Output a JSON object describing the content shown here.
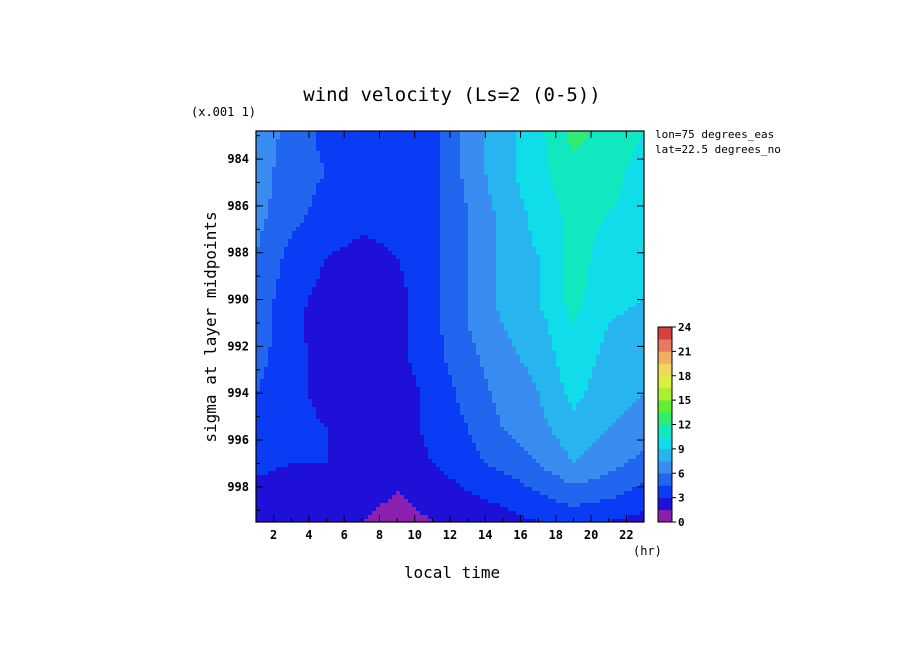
{
  "chart_data": {
    "type": "heatmap",
    "title": "wind velocity (Ls=2 (0-5))",
    "xlabel": "local time",
    "ylabel": "sigma at layer midpoints",
    "x_units": "(hr)",
    "y_scale_note": "(x.001 1)",
    "annotations": [
      "lon=75 degrees_eas",
      "lat=22.5 degrees_no"
    ],
    "xlim": [
      1,
      23
    ],
    "ylim": [
      999.5,
      982.8
    ],
    "x_ticks": [
      2,
      4,
      6,
      8,
      10,
      12,
      14,
      16,
      18,
      20,
      22
    ],
    "y_ticks": [
      984,
      986,
      988,
      990,
      992,
      994,
      996,
      998
    ],
    "x": [
      1,
      3,
      5,
      7,
      9,
      11,
      13,
      15,
      17,
      19,
      21,
      23
    ],
    "y": [
      982.8,
      984.5,
      986.3,
      988.2,
      990,
      991,
      992.5,
      994,
      995.5,
      997,
      998.2,
      999.5
    ],
    "z": [
      [
        7.0,
        5.5,
        4.0,
        3.5,
        4.0,
        4.0,
        6.5,
        8.5,
        10.0,
        12.5,
        11.5,
        10.5
      ],
      [
        7.0,
        5.0,
        4.5,
        4.0,
        3.5,
        4.0,
        6.5,
        8.5,
        10.0,
        11.5,
        11.0,
        10.0
      ],
      [
        6.5,
        5.0,
        4.0,
        3.5,
        3.5,
        4.0,
        6.0,
        8.0,
        9.5,
        11.0,
        10.5,
        10.0
      ],
      [
        6.0,
        4.0,
        3.0,
        2.5,
        3.0,
        4.0,
        6.0,
        8.0,
        9.0,
        11.0,
        10.0,
        9.5
      ],
      [
        5.5,
        3.5,
        2.5,
        2.0,
        2.5,
        4.0,
        6.0,
        8.0,
        9.0,
        11.0,
        9.5,
        9.0
      ],
      [
        5.5,
        3.5,
        2.0,
        2.0,
        2.5,
        4.0,
        6.0,
        7.5,
        8.5,
        10.5,
        9.0,
        8.5
      ],
      [
        5.0,
        3.5,
        2.5,
        2.0,
        2.5,
        4.0,
        5.5,
        7.0,
        8.0,
        10.0,
        8.5,
        8.0
      ],
      [
        4.5,
        3.5,
        2.5,
        2.5,
        2.0,
        3.5,
        5.0,
        6.5,
        7.5,
        9.5,
        8.0,
        7.5
      ],
      [
        4.5,
        3.5,
        3.0,
        2.5,
        2.0,
        3.5,
        4.5,
        6.0,
        7.0,
        8.5,
        7.5,
        7.0
      ],
      [
        3.5,
        3.0,
        3.0,
        3.0,
        2.0,
        3.0,
        4.0,
        5.0,
        6.0,
        7.5,
        6.5,
        5.5
      ],
      [
        2.5,
        2.0,
        2.0,
        2.0,
        1.5,
        2.0,
        3.0,
        3.5,
        4.5,
        5.5,
        5.0,
        4.0
      ],
      [
        1.5,
        1.5,
        1.5,
        1.5,
        1.0,
        1.5,
        2.0,
        2.5,
        3.0,
        3.5,
        3.0,
        2.5
      ]
    ],
    "colorbar": {
      "levels": [
        0,
        1.5,
        3,
        4.5,
        6,
        7.5,
        9,
        10.5,
        12,
        13.5,
        15,
        16.5,
        18,
        19.5,
        21,
        22.5,
        24
      ],
      "tick_labels": [
        "0",
        "3",
        "6",
        "9",
        "12",
        "15",
        "18",
        "21",
        "24"
      ],
      "colors": [
        "#8a1fb0",
        "#1f10d8",
        "#0a3cf5",
        "#2266f0",
        "#3a8cf0",
        "#28b4ee",
        "#10dcea",
        "#10e8c0",
        "#30ec70",
        "#60f030",
        "#a8f030",
        "#d8f040",
        "#f0d860",
        "#f0b060",
        "#e87860",
        "#d84040"
      ]
    }
  }
}
